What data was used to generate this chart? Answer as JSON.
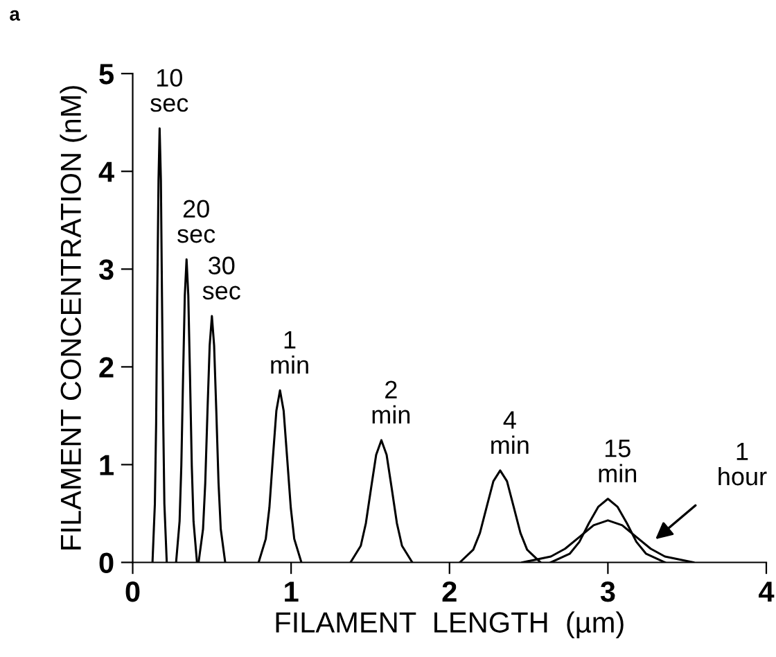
{
  "chart_data": {
    "type": "line",
    "xlabel": "FILAMENT  LENGTH  (µm)",
    "ylabel": "FILAMENT CONCENTRATION (nM)",
    "xlim": [
      0,
      4
    ],
    "ylim": [
      0,
      5
    ],
    "xticks": [
      0,
      1,
      2,
      3,
      4
    ],
    "yticks": [
      0,
      1,
      2,
      3,
      4,
      5
    ],
    "grid": false,
    "color": "#000000",
    "line_style": "solid",
    "marker": "none",
    "series": [
      {
        "name": "10\nsec",
        "x": [
          0.125,
          0.14,
          0.148,
          0.155,
          0.163,
          0.17,
          0.178,
          0.185,
          0.193,
          0.2,
          0.215
        ],
        "values": [
          0,
          0.6,
          1.42,
          2.71,
          3.91,
          4.44,
          3.91,
          2.71,
          1.42,
          0.6,
          0
        ]
      },
      {
        "name": "20\nsec",
        "x": [
          0.274,
          0.296,
          0.307,
          0.318,
          0.329,
          0.34,
          0.351,
          0.362,
          0.373,
          0.384,
          0.406
        ],
        "values": [
          0,
          0.42,
          0.99,
          1.89,
          2.73,
          3.1,
          2.73,
          1.89,
          0.99,
          0.42,
          0
        ]
      },
      {
        "name": "30\nsec",
        "x": [
          0.416,
          0.444,
          0.458,
          0.472,
          0.486,
          0.5,
          0.514,
          0.528,
          0.542,
          0.556,
          0.584
        ],
        "values": [
          0,
          0.34,
          0.81,
          1.54,
          2.22,
          2.52,
          2.22,
          1.54,
          0.81,
          0.34,
          0
        ]
      },
      {
        "name": "1\nmin",
        "x": [
          0.795,
          0.84,
          0.863,
          0.885,
          0.907,
          0.93,
          0.953,
          0.975,
          0.998,
          1.02,
          1.065
        ],
        "values": [
          0,
          0.24,
          0.56,
          1.07,
          1.55,
          1.76,
          1.55,
          1.07,
          0.56,
          0.24,
          0
        ]
      },
      {
        "name": "2\nmin",
        "x": [
          1.375,
          1.44,
          1.472,
          1.505,
          1.537,
          1.57,
          1.603,
          1.635,
          1.668,
          1.7,
          1.765
        ],
        "values": [
          0,
          0.17,
          0.4,
          0.76,
          1.1,
          1.25,
          1.1,
          0.76,
          0.4,
          0.17,
          0
        ]
      },
      {
        "name": "4\nmin",
        "x": [
          2.065,
          2.15,
          2.192,
          2.235,
          2.277,
          2.32,
          2.363,
          2.405,
          2.448,
          2.49,
          2.575
        ],
        "values": [
          0,
          0.13,
          0.3,
          0.57,
          0.83,
          0.94,
          0.83,
          0.57,
          0.3,
          0.13,
          0
        ]
      },
      {
        "name": "15\nmin",
        "x": [
          2.64,
          2.76,
          2.82,
          2.88,
          2.94,
          3.0,
          3.06,
          3.12,
          3.18,
          3.24,
          3.36
        ],
        "values": [
          0,
          0.09,
          0.21,
          0.4,
          0.57,
          0.65,
          0.57,
          0.4,
          0.21,
          0.09,
          0
        ]
      },
      {
        "name": "1\nhour",
        "x": [
          2.46,
          2.64,
          2.73,
          2.82,
          2.91,
          3.0,
          3.09,
          3.18,
          3.27,
          3.36,
          3.54
        ],
        "values": [
          0,
          0.06,
          0.14,
          0.26,
          0.38,
          0.43,
          0.38,
          0.26,
          0.14,
          0.06,
          0
        ]
      }
    ],
    "annotations": [
      "a"
    ]
  }
}
